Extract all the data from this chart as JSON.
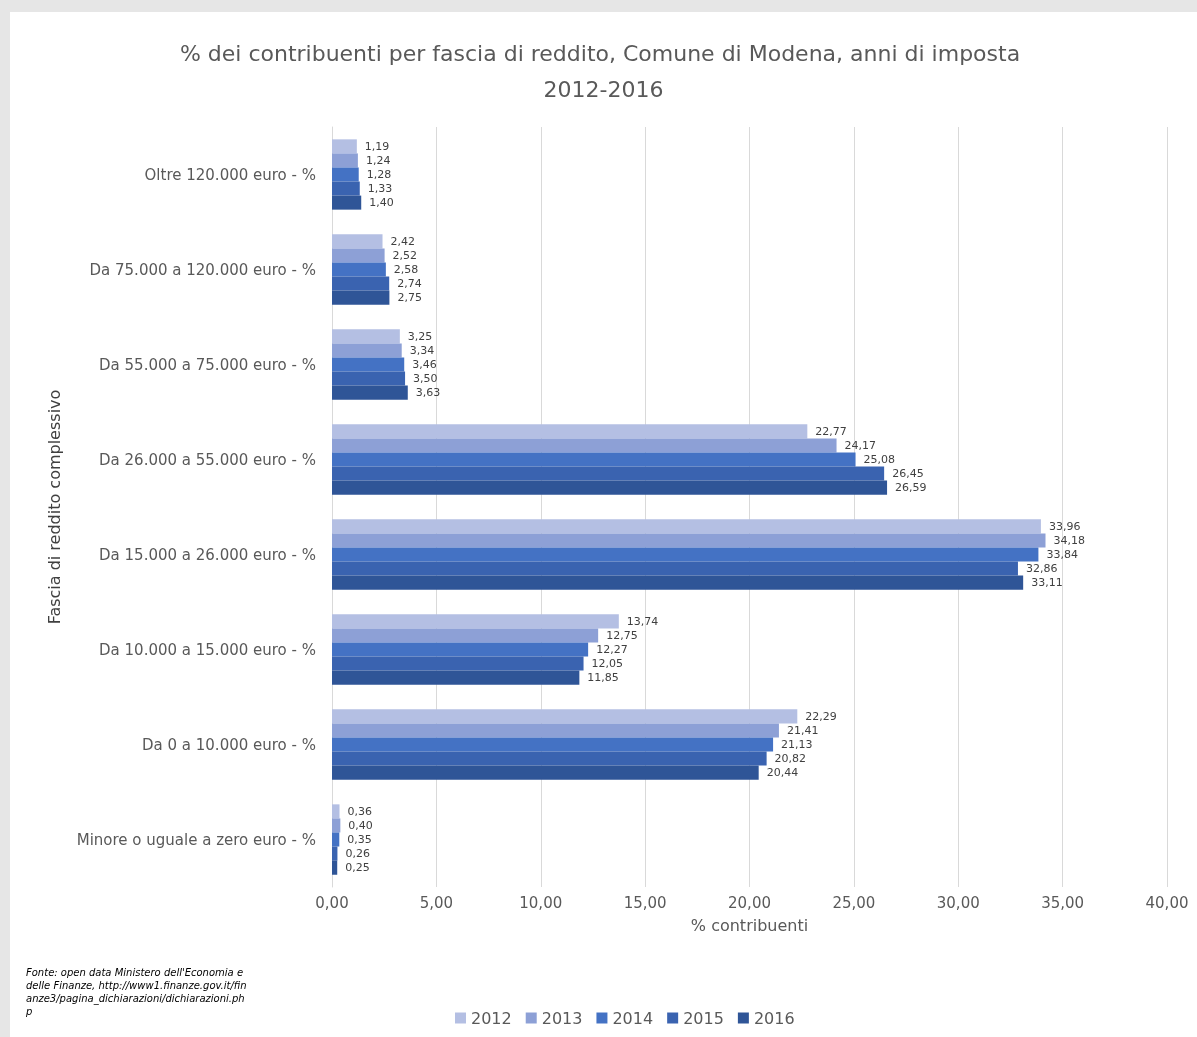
{
  "chart_data": {
    "type": "bar",
    "orientation": "horizontal",
    "title": "% dei contribuenti per fascia di reddito, Comune di Modena, anni di imposta 2012-2016",
    "xlabel": "% contribuenti",
    "ylabel": "Fascia di reddito complessivo",
    "categories": [
      "Oltre 120.000 euro - %",
      "Da 75.000 a 120.000 euro - %",
      "Da 55.000 a 75.000 euro - %",
      "Da 26.000 a 55.000 euro - %",
      "Da 15.000 a 26.000 euro - %",
      "Da 10.000 a 15.000 euro - %",
      "Da 0 a 10.000 euro - %",
      "Minore o uguale a zero euro - %"
    ],
    "series": [
      {
        "name": "2012",
        "color": "#b4bfe3",
        "values": [
          1.19,
          2.42,
          3.25,
          22.77,
          33.96,
          13.74,
          22.29,
          0.36
        ],
        "value_labels": [
          "1,19",
          "2,42",
          "3,25",
          "22,77",
          "33,96",
          "13,74",
          "22,29",
          "0,36"
        ]
      },
      {
        "name": "2013",
        "color": "#8da0d6",
        "values": [
          1.24,
          2.52,
          3.34,
          24.17,
          34.18,
          12.75,
          21.41,
          0.4
        ],
        "value_labels": [
          "1,24",
          "2,52",
          "3,34",
          "24,17",
          "34,18",
          "12,75",
          "21,41",
          "0,40"
        ]
      },
      {
        "name": "2014",
        "color": "#4472c4",
        "values": [
          1.28,
          2.58,
          3.46,
          25.08,
          33.84,
          12.27,
          21.13,
          0.35
        ],
        "value_labels": [
          "1,28",
          "2,58",
          "3,46",
          "25,08",
          "33,84",
          "12,27",
          "21,13",
          "0,35"
        ]
      },
      {
        "name": "2015",
        "color": "#3a63b0",
        "values": [
          1.33,
          2.74,
          3.5,
          26.45,
          32.86,
          12.05,
          20.82,
          0.26
        ],
        "value_labels": [
          "1,33",
          "2,74",
          "3,50",
          "26,45",
          "32,86",
          "12,05",
          "20,82",
          "0,26"
        ]
      },
      {
        "name": "2016",
        "color": "#2f5597",
        "values": [
          1.4,
          2.75,
          3.63,
          26.59,
          33.11,
          11.85,
          20.44,
          0.25
        ],
        "value_labels": [
          "1,40",
          "2,75",
          "3,63",
          "26,59",
          "33,11",
          "11,85",
          "20,44",
          "0,25"
        ]
      }
    ],
    "xlim": [
      0,
      40
    ],
    "xticks": [
      {
        "value": 0,
        "label": "0,00"
      },
      {
        "value": 5,
        "label": "5,00"
      },
      {
        "value": 10,
        "label": "10,00"
      },
      {
        "value": 15,
        "label": "15,00"
      },
      {
        "value": 20,
        "label": "20,00"
      },
      {
        "value": 25,
        "label": "25,00"
      },
      {
        "value": 30,
        "label": "30,00"
      },
      {
        "value": 35,
        "label": "35,00"
      },
      {
        "value": 40,
        "label": "40,00"
      }
    ],
    "grid": "x",
    "legend": "bottom",
    "annotations": [
      "Fonte: open data Ministero dell'Economia e delle Finanze, http://www1.finanze.gov.it/finanze3/pagina_dichiarazioni/dichiarazioni.php"
    ]
  }
}
